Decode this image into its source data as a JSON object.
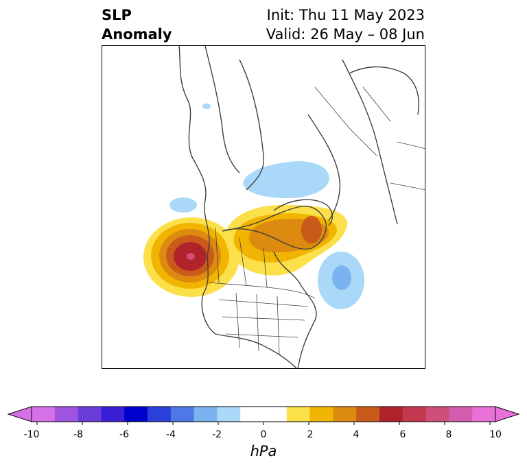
{
  "title": {
    "left_line1": "SLP",
    "left_line2": "Anomaly",
    "right_line1": "Init: Thu 11 May 2023",
    "right_line2": "Valid: 26 May – 08 Jun"
  },
  "map": {
    "projection": "north-polar-stereographic",
    "anomaly_features": [
      {
        "name": "high-pacific-nw",
        "sign": "positive",
        "peak_hpa": 9
      },
      {
        "name": "high-greenland",
        "sign": "positive",
        "peak_hpa": 6
      },
      {
        "name": "low-west-atlantic",
        "sign": "negative",
        "peak_hpa": -3
      },
      {
        "name": "low-siberia-arctic",
        "sign": "negative",
        "peak_hpa": -2
      }
    ]
  },
  "colorbar": {
    "unit": "hPa",
    "ticks": [
      "-10",
      "-8",
      "-6",
      "-4",
      "-2",
      "0",
      "2",
      "4",
      "6",
      "8",
      "10"
    ],
    "colors": [
      "#d670e6",
      "#9f55e0",
      "#6a3ddb",
      "#3b1fd6",
      "#0000cc",
      "#2a40d8",
      "#4f78e6",
      "#7ab3f0",
      "#aad8f8",
      "#ffffff",
      "#ffffff",
      "#fbe04a",
      "#f1b400",
      "#dc8a10",
      "#c95a1a",
      "#b0232a",
      "#c4384f",
      "#d04f7a",
      "#d45cae",
      "#e771d6"
    ]
  }
}
